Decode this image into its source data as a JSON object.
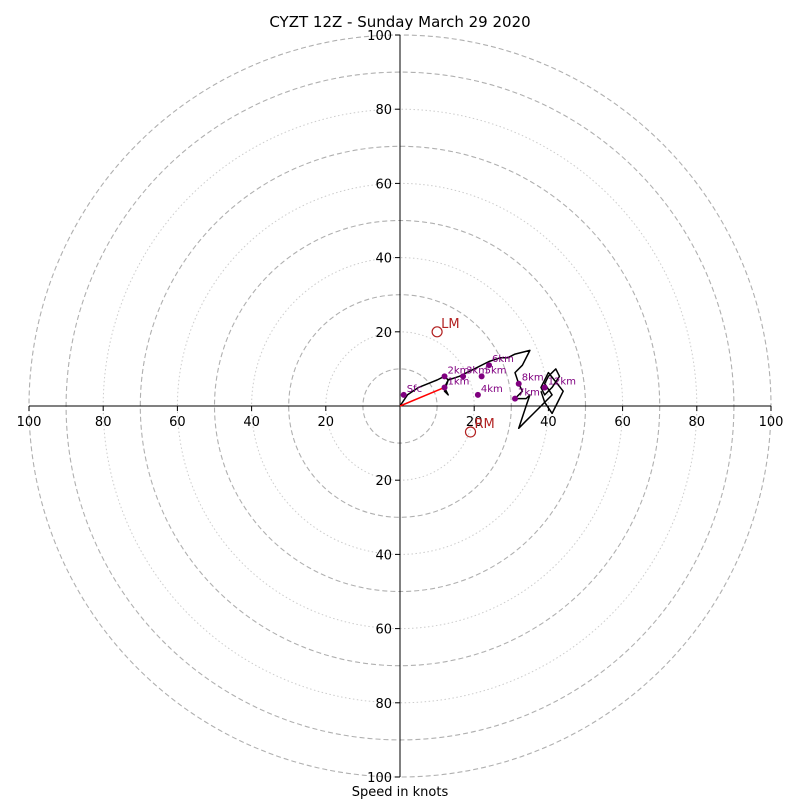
{
  "chart_data": {
    "type": "hodograph",
    "title": "CYZT 12Z - Sunday March 29 2020",
    "xlabel": "Speed in knots",
    "range": [
      -100,
      100
    ],
    "rings_major": [
      10,
      30,
      50,
      70,
      90,
      100
    ],
    "rings_minor": [
      20,
      40,
      60,
      80
    ],
    "ring_labels": [
      20,
      40,
      60,
      80,
      100
    ],
    "grid": true,
    "colors": {
      "hodo_line": "#000000",
      "height_marker": "#800080",
      "storm_motion": "#b22222",
      "shear_vector": "#ff0000",
      "ring_major": "#b0b0b0",
      "ring_minor": "#cccccc"
    },
    "hodograph_trace": [
      [
        0,
        0
      ],
      [
        2,
        3
      ],
      [
        5,
        5
      ],
      [
        10,
        7
      ],
      [
        12,
        8
      ],
      [
        13,
        7
      ],
      [
        12,
        4
      ],
      [
        13,
        3
      ],
      [
        12,
        5
      ],
      [
        13,
        7
      ],
      [
        16,
        8
      ],
      [
        18,
        9
      ],
      [
        20,
        10
      ],
      [
        24,
        12
      ],
      [
        27,
        13
      ],
      [
        29,
        13
      ],
      [
        31,
        14
      ],
      [
        35,
        15
      ],
      [
        33,
        11
      ],
      [
        31,
        9
      ],
      [
        32,
        6
      ],
      [
        33,
        4
      ],
      [
        31,
        2
      ],
      [
        34,
        2
      ],
      [
        35,
        3
      ],
      [
        34,
        0
      ],
      [
        33,
        -3
      ],
      [
        32,
        -6
      ],
      [
        34,
        -4
      ],
      [
        36,
        -2
      ],
      [
        38,
        0
      ],
      [
        41,
        3
      ],
      [
        39,
        6
      ],
      [
        40,
        8
      ],
      [
        42,
        10
      ],
      [
        43,
        8
      ],
      [
        41,
        5
      ],
      [
        39,
        3
      ],
      [
        38,
        5
      ],
      [
        40,
        9
      ],
      [
        44,
        4
      ],
      [
        42,
        0
      ],
      [
        41,
        -2
      ],
      [
        39,
        1
      ],
      [
        38,
        4
      ]
    ],
    "height_markers": [
      {
        "label": "Sfc",
        "u": 1,
        "v": 3
      },
      {
        "label": "1km",
        "u": 12,
        "v": 5
      },
      {
        "label": "2km",
        "u": 12,
        "v": 8
      },
      {
        "label": "3km",
        "u": 17,
        "v": 8
      },
      {
        "label": "4km",
        "u": 21,
        "v": 3
      },
      {
        "label": "5km",
        "u": 22,
        "v": 8
      },
      {
        "label": "6km",
        "u": 24,
        "v": 11
      },
      {
        "label": "7km",
        "u": 31,
        "v": 2
      },
      {
        "label": "8km",
        "u": 32,
        "v": 6
      },
      {
        "label": "12km",
        "u": 39,
        "v": 5
      }
    ],
    "storm_motion": {
      "LM": {
        "label": "LM",
        "u": 10,
        "v": 20
      },
      "RM": {
        "label": "RM",
        "u": 19,
        "v": -7
      }
    },
    "shear_vector": {
      "u": 12,
      "v": 5
    }
  }
}
